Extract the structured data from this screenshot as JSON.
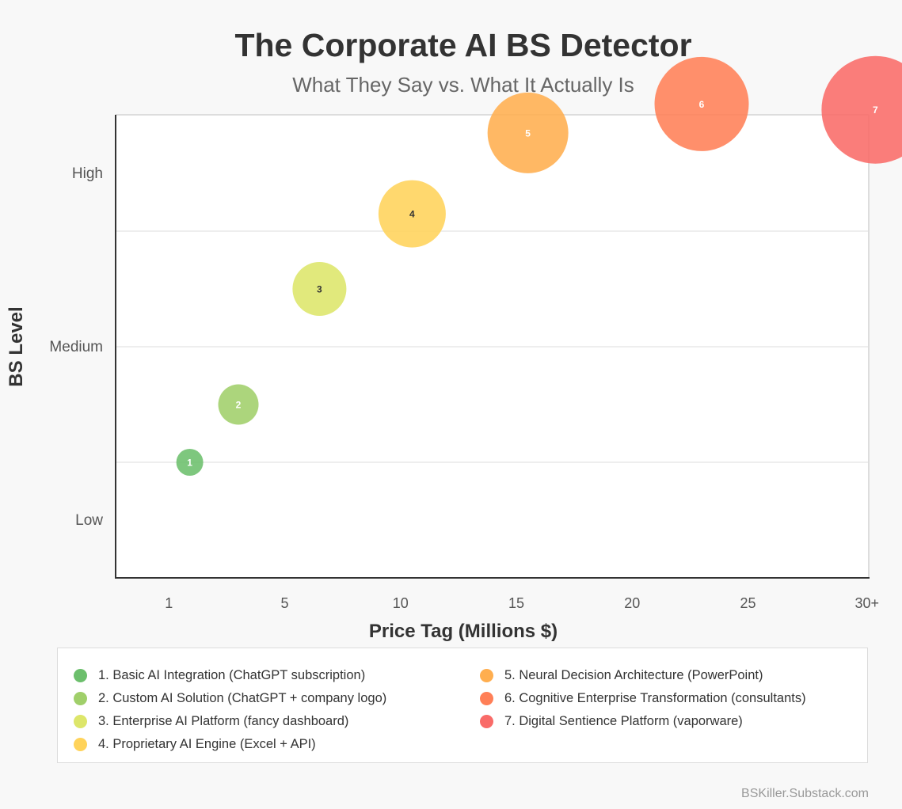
{
  "chart_data": {
    "type": "scatter",
    "title": "The Corporate AI BS Detector",
    "subtitle": "What They Say vs. What It Actually Is",
    "xlabel": "Price Tag (Millions $)",
    "ylabel": "BS Level",
    "x_tick_labels": [
      "1",
      "5",
      "10",
      "15",
      "20",
      "25",
      "30+"
    ],
    "y_tick_labels": [
      "Low",
      "Medium",
      "High"
    ],
    "points": [
      {
        "label": "1",
        "x": 0.9,
        "y": 20,
        "size": 1,
        "color": "#6cbf6c",
        "text_color": "#ffffff"
      },
      {
        "label": "2",
        "x": 3,
        "y": 30,
        "size": 2,
        "color": "#a0cf6a",
        "text_color": "#ffffff"
      },
      {
        "label": "3",
        "x": 6.5,
        "y": 50,
        "size": 3,
        "color": "#dde66a",
        "text_color": "#333333"
      },
      {
        "label": "4",
        "x": 10.5,
        "y": 63,
        "size": 4,
        "color": "#ffd35a",
        "text_color": "#333333"
      },
      {
        "label": "5",
        "x": 15.5,
        "y": 77,
        "size": 5,
        "color": "#ffae4f",
        "text_color": "#ffffff"
      },
      {
        "label": "6",
        "x": 23,
        "y": 82,
        "size": 6,
        "color": "#ff7f57",
        "text_color": "#ffffff"
      },
      {
        "label": "7",
        "x": 30.5,
        "y": 81,
        "size": 7,
        "color": "#f96b68",
        "text_color": "#ffffff"
      }
    ],
    "legend": [
      {
        "text": "1. Basic AI Integration (ChatGPT subscription)",
        "color": "#6cbf6c"
      },
      {
        "text": "2. Custom AI Solution (ChatGPT + company logo)",
        "color": "#a0cf6a"
      },
      {
        "text": "3. Enterprise AI Platform (fancy dashboard)",
        "color": "#dde66a"
      },
      {
        "text": "4. Proprietary AI Engine (Excel + API)",
        "color": "#ffd35a"
      },
      {
        "text": "5. Neural Decision Architecture (PowerPoint)",
        "color": "#ffae4f"
      },
      {
        "text": "6. Cognitive Enterprise Transformation (consultants)",
        "color": "#ff7f57"
      },
      {
        "text": "7. Digital Sentience Platform (vaporware)",
        "color": "#f96b68"
      }
    ],
    "legend_placement": "bottom",
    "grid": true
  },
  "footer": "BSKiller.Substack.com"
}
